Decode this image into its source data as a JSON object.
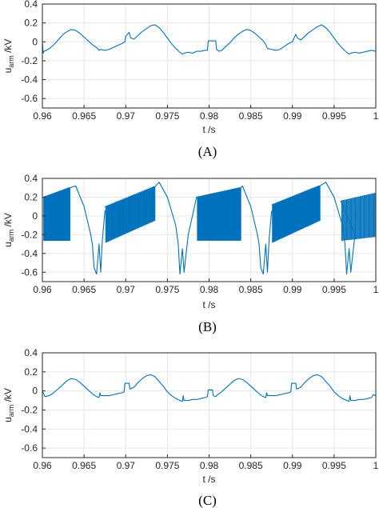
{
  "colors": {
    "series": "#0072bd",
    "axis": "#262626",
    "grid": "#e6e6e6"
  },
  "chart_data": [
    {
      "type": "line",
      "caption": "(A)",
      "xlabel": "t /s",
      "ylabel": {
        "main": "u",
        "sub": "arm",
        "unit": "/kV"
      },
      "xlim": [
        0.96,
        1.0
      ],
      "ylim": [
        -0.7,
        0.4
      ],
      "xticks": [
        "0.96",
        "0.965",
        "0.97",
        "0.975",
        "0.98",
        "0.985",
        "0.99",
        "0.995",
        "1"
      ],
      "yticks": [
        "0.4",
        "0.2",
        "0",
        "-0.2",
        "-0.4",
        "-0.6"
      ],
      "grid": true,
      "series": [
        {
          "x": [
            0.96,
            0.9601,
            0.9602,
            0.9605,
            0.961,
            0.9615,
            0.962,
            0.9625,
            0.963,
            0.9635,
            0.964,
            0.9645,
            0.965,
            0.9655,
            0.966,
            0.9665,
            0.9668,
            0.967,
            0.9675,
            0.968,
            0.9685,
            0.969,
            0.9695,
            0.9699,
            0.97,
            0.9702,
            0.9704,
            0.9706,
            0.971,
            0.9715,
            0.972,
            0.9725,
            0.973,
            0.9735,
            0.974,
            0.9745,
            0.975,
            0.9755,
            0.976,
            0.9765,
            0.9768,
            0.977,
            0.9775,
            0.978,
            0.9785,
            0.979,
            0.9795,
            0.9798,
            0.9799,
            0.9808,
            0.9809,
            0.9812,
            0.9815,
            0.982,
            0.9825,
            0.983,
            0.9835,
            0.984,
            0.9845,
            0.985,
            0.9855,
            0.986,
            0.9865,
            0.9868,
            0.987,
            0.9875,
            0.988,
            0.9885,
            0.989,
            0.9895,
            0.99,
            0.9902,
            0.9904,
            0.9906,
            0.991,
            0.9915,
            0.992,
            0.9925,
            0.993,
            0.9935,
            0.994,
            0.9945,
            0.995,
            0.9955,
            0.996,
            0.9965,
            0.9968,
            0.997,
            0.9975,
            0.998,
            0.9985,
            0.999,
            0.9995,
            1.0
          ],
          "y": [
            0.0,
            -0.12,
            -0.1,
            -0.09,
            -0.06,
            -0.02,
            0.03,
            0.08,
            0.11,
            0.13,
            0.12,
            0.09,
            0.05,
            0.01,
            -0.03,
            -0.06,
            -0.09,
            -0.08,
            -0.09,
            -0.08,
            -0.06,
            -0.04,
            -0.02,
            0.0,
            0.06,
            0.08,
            0.1,
            0.04,
            0.03,
            0.07,
            0.11,
            0.14,
            0.17,
            0.18,
            0.15,
            0.1,
            0.04,
            -0.02,
            -0.07,
            -0.11,
            -0.13,
            -0.12,
            -0.11,
            -0.12,
            -0.1,
            -0.1,
            -0.09,
            -0.09,
            0.01,
            0.01,
            -0.08,
            -0.1,
            -0.09,
            -0.05,
            -0.01,
            0.04,
            0.08,
            0.11,
            0.13,
            0.12,
            0.09,
            0.05,
            0.01,
            -0.03,
            -0.07,
            -0.08,
            -0.09,
            -0.08,
            -0.05,
            -0.02,
            0.0,
            0.04,
            0.08,
            0.04,
            0.02,
            0.06,
            0.1,
            0.13,
            0.16,
            0.18,
            0.15,
            0.1,
            0.04,
            -0.02,
            -0.07,
            -0.11,
            -0.13,
            -0.12,
            -0.11,
            -0.12,
            -0.11,
            -0.1,
            -0.09,
            -0.1
          ]
        }
      ]
    },
    {
      "type": "line",
      "caption": "(B)",
      "xlabel": "t /s",
      "ylabel": {
        "main": "u",
        "sub": "arm",
        "unit": "/kV"
      },
      "xlim": [
        0.96,
        1.0
      ],
      "ylim": [
        -0.7,
        0.4
      ],
      "xticks": [
        "0.96",
        "0.965",
        "0.97",
        "0.975",
        "0.98",
        "0.985",
        "0.99",
        "0.995",
        "1"
      ],
      "yticks": [
        "0.4",
        "0.2",
        "0",
        "-0.2",
        "-0.4",
        "-0.6"
      ],
      "grid": true,
      "envelope_segments": [
        {
          "x0": 0.9601,
          "x1": 0.9633,
          "hi0": 0.2,
          "hi1": 0.3,
          "lo0": -0.26,
          "lo1": -0.26,
          "pulses": 26
        },
        {
          "x0": 0.9675,
          "x1": 0.9735,
          "hi0": 0.1,
          "hi1": 0.31,
          "lo0": -0.28,
          "lo1": -0.05,
          "pulses": 28
        },
        {
          "x0": 0.9785,
          "x1": 0.9838,
          "hi0": 0.2,
          "hi1": 0.3,
          "lo0": -0.26,
          "lo1": -0.26,
          "pulses": 26
        },
        {
          "x0": 0.9875,
          "x1": 0.9933,
          "hi0": 0.12,
          "hi1": 0.32,
          "lo0": -0.28,
          "lo1": -0.05,
          "pulses": 28
        },
        {
          "x0": 0.9958,
          "x1": 1.0,
          "hi0": 0.16,
          "hi1": 0.24,
          "lo0": -0.26,
          "lo1": -0.22,
          "pulses": 18
        }
      ],
      "series": [
        {
          "x": [
            0.9633,
            0.964,
            0.965,
            0.9658,
            0.966,
            0.9662,
            0.9665,
            0.9668,
            0.967,
            0.9672,
            0.9675,
            0.9735,
            0.974,
            0.975,
            0.976,
            0.9763,
            0.9765,
            0.9768,
            0.977,
            0.9775,
            0.978,
            0.9785,
            0.9838,
            0.984,
            0.985,
            0.9858,
            0.986,
            0.9862,
            0.9865,
            0.9868,
            0.987,
            0.9872,
            0.9875,
            0.9933,
            0.994,
            0.995,
            0.996,
            0.9963,
            0.9965,
            0.9968,
            0.997,
            0.9975,
            0.9958
          ],
          "y": [
            0.3,
            0.32,
            0.1,
            -0.2,
            -0.3,
            -0.55,
            -0.62,
            -0.3,
            -0.6,
            -0.25,
            0.05,
            0.31,
            0.36,
            0.2,
            -0.1,
            -0.3,
            -0.62,
            -0.35,
            -0.6,
            -0.2,
            0.0,
            0.2,
            0.3,
            0.32,
            0.1,
            -0.2,
            -0.3,
            -0.55,
            -0.62,
            -0.3,
            -0.6,
            -0.25,
            0.05,
            0.32,
            0.36,
            0.2,
            -0.1,
            -0.3,
            -0.62,
            -0.35,
            -0.6,
            -0.2,
            0.16
          ]
        }
      ]
    },
    {
      "type": "line",
      "caption": "(C)",
      "xlabel": "t /s",
      "ylabel": {
        "main": "u",
        "sub": "arm",
        "unit": "/kV"
      },
      "xlim": [
        0.96,
        1.0
      ],
      "ylim": [
        -0.7,
        0.4
      ],
      "xticks": [
        "0.96",
        "0.965",
        "0.97",
        "0.975",
        "0.98",
        "0.985",
        "0.99",
        "0.995",
        "1"
      ],
      "yticks": [
        "0.4",
        "0.2",
        "0",
        "-0.2",
        "-0.4",
        "-0.6"
      ],
      "grid": true,
      "series": [
        {
          "x": [
            0.96,
            0.9603,
            0.9608,
            0.9612,
            0.9616,
            0.962,
            0.9625,
            0.963,
            0.9635,
            0.964,
            0.9645,
            0.965,
            0.9655,
            0.966,
            0.9665,
            0.9668,
            0.9669,
            0.967,
            0.9675,
            0.968,
            0.9685,
            0.969,
            0.9695,
            0.9698,
            0.9699,
            0.9702,
            0.9704,
            0.9705,
            0.9708,
            0.971,
            0.9715,
            0.972,
            0.9725,
            0.973,
            0.9735,
            0.974,
            0.9745,
            0.975,
            0.9755,
            0.976,
            0.9765,
            0.9768,
            0.9769,
            0.977,
            0.9775,
            0.978,
            0.9785,
            0.979,
            0.9795,
            0.9798,
            0.9799,
            0.9804,
            0.9805,
            0.9808,
            0.981,
            0.9815,
            0.982,
            0.9825,
            0.983,
            0.9835,
            0.984,
            0.9845,
            0.985,
            0.9855,
            0.986,
            0.9865,
            0.9868,
            0.9869,
            0.987,
            0.9875,
            0.988,
            0.9885,
            0.989,
            0.9895,
            0.9898,
            0.9899,
            0.9902,
            0.9904,
            0.9905,
            0.9908,
            0.991,
            0.9915,
            0.992,
            0.9925,
            0.993,
            0.9935,
            0.994,
            0.9945,
            0.995,
            0.9955,
            0.996,
            0.9965,
            0.9968,
            0.9969,
            0.997,
            0.9975,
            0.998,
            0.9985,
            0.999,
            0.9995,
            0.9997,
            1.0
          ],
          "y": [
            0.0,
            -0.06,
            -0.05,
            -0.03,
            0.0,
            0.03,
            0.07,
            0.11,
            0.13,
            0.12,
            0.09,
            0.05,
            0.01,
            -0.03,
            -0.06,
            -0.07,
            -0.02,
            -0.05,
            -0.05,
            -0.05,
            -0.04,
            -0.03,
            -0.02,
            -0.01,
            0.08,
            0.08,
            0.08,
            0.02,
            0.03,
            0.04,
            0.09,
            0.13,
            0.16,
            0.17,
            0.15,
            0.1,
            0.05,
            -0.01,
            -0.05,
            -0.08,
            -0.1,
            -0.11,
            -0.05,
            -0.1,
            -0.1,
            -0.09,
            -0.09,
            -0.08,
            -0.07,
            -0.06,
            0.01,
            0.01,
            -0.05,
            -0.06,
            -0.04,
            -0.01,
            0.03,
            0.07,
            0.11,
            0.13,
            0.12,
            0.09,
            0.05,
            0.01,
            -0.03,
            -0.06,
            -0.07,
            -0.02,
            -0.05,
            -0.05,
            -0.05,
            -0.04,
            -0.03,
            -0.02,
            -0.01,
            0.08,
            0.08,
            0.08,
            0.02,
            0.03,
            0.04,
            0.09,
            0.13,
            0.16,
            0.17,
            0.15,
            0.1,
            0.05,
            -0.01,
            -0.05,
            -0.08,
            -0.1,
            -0.11,
            -0.05,
            -0.1,
            -0.1,
            -0.09,
            -0.09,
            -0.08,
            -0.07,
            -0.04,
            -0.05
          ]
        }
      ]
    }
  ]
}
